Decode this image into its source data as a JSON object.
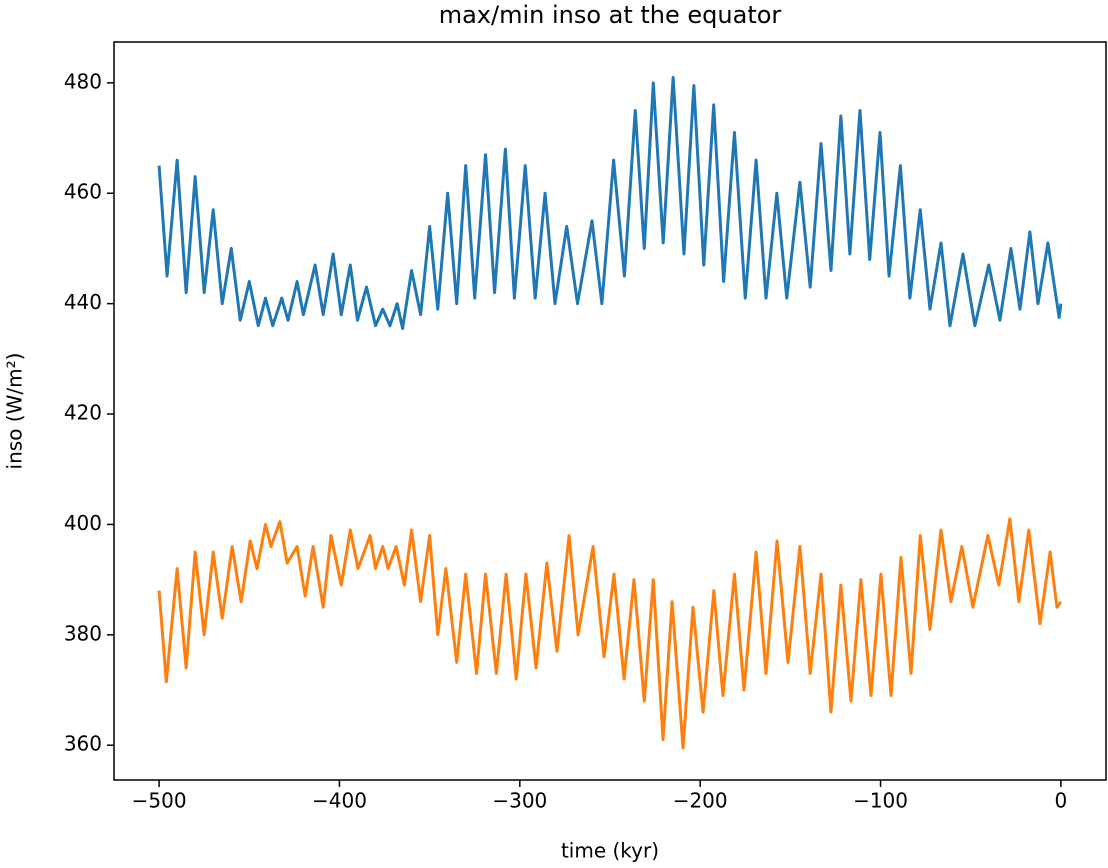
{
  "chart_data": {
    "type": "line",
    "title": "max/min inso at the equator",
    "x_label": "time (kyr)",
    "y_label": "inso (W/m²)",
    "xlim": [
      -525,
      25
    ],
    "ylim": [
      353.7,
      487.4
    ],
    "xticks": [
      {
        "value": -500,
        "label": "−500"
      },
      {
        "value": -400,
        "label": "−400"
      },
      {
        "value": -300,
        "label": "−300"
      },
      {
        "value": -200,
        "label": "−200"
      },
      {
        "value": -100,
        "label": "−100"
      },
      0
    ],
    "yticks": [
      360,
      380,
      400,
      420,
      440,
      460,
      480
    ],
    "series": [
      {
        "color": "#1f77b4",
        "x": [
          -500,
          -495.6,
          -490,
          -485,
          -480,
          -475,
          -470,
          -465,
          -460,
          -455,
          -450,
          -445,
          -441,
          -437,
          -432,
          -428.5,
          -423.5,
          -420,
          -413.5,
          -409,
          -403.5,
          -399,
          -394,
          -390,
          -385,
          -380,
          -376,
          -372,
          -368,
          -365,
          -360,
          -355,
          -350,
          -345.5,
          -340,
          -335,
          -330,
          -325,
          -319,
          -314,
          -308,
          -303,
          -297,
          -291.5,
          -286,
          -280.5,
          -274,
          -268,
          -260,
          -254.5,
          -248,
          -242,
          -236,
          -231,
          -226,
          -220.5,
          -215,
          -209,
          -203.5,
          -198,
          -192.5,
          -187,
          -181,
          -175,
          -169,
          -163.5,
          -157.5,
          -152,
          -144.7,
          -139,
          -133,
          -127.5,
          -122,
          -117,
          -111.4,
          -106,
          -100.3,
          -95.3,
          -89,
          -83.7,
          -78,
          -72.6,
          -66.5,
          -61.5,
          -54.3,
          -47.7,
          -40,
          -33.8,
          -27.7,
          -22.7,
          -17.2,
          -12.7,
          -7.2,
          -1,
          0
        ],
        "values": [
          465,
          445,
          466,
          442,
          463,
          442,
          457,
          440,
          450,
          437,
          444,
          436,
          441,
          436,
          441,
          437,
          444,
          438,
          447,
          438,
          449,
          438,
          447,
          437,
          443,
          436,
          439,
          436,
          440,
          435.5,
          446,
          438,
          454,
          439,
          460,
          440,
          465,
          441,
          467,
          442,
          468,
          441,
          465,
          441,
          460,
          440,
          454,
          440,
          455,
          440,
          466,
          445,
          475,
          450,
          480,
          451,
          481,
          449,
          479.5,
          447,
          476,
          444,
          471,
          441,
          466,
          441,
          460,
          441,
          462,
          443,
          469,
          446,
          474,
          449,
          475,
          448,
          471,
          445,
          465,
          441,
          457,
          439,
          451,
          436,
          449,
          436,
          447,
          437,
          450,
          439,
          453,
          440,
          451,
          437.5,
          440
        ]
      },
      {
        "color": "#ff7f0e",
        "x": [
          -500,
          -496,
          -490,
          -485,
          -480,
          -475,
          -470,
          -465,
          -459.5,
          -454.5,
          -449.5,
          -445.7,
          -441,
          -438,
          -433,
          -429,
          -423.5,
          -419,
          -414.6,
          -409,
          -404.7,
          -399,
          -394,
          -389.7,
          -383,
          -380,
          -376,
          -373,
          -368.6,
          -364,
          -360,
          -355,
          -350,
          -345.5,
          -341,
          -335,
          -330,
          -324,
          -319,
          -313,
          -307.6,
          -302,
          -296.6,
          -291,
          -285,
          -279.4,
          -272.7,
          -267.7,
          -259.4,
          -253.3,
          -247.8,
          -242.2,
          -236.7,
          -231,
          -226,
          -220.6,
          -215.6,
          -209.5,
          -204,
          -198.4,
          -192.4,
          -187.4,
          -181,
          -175.7,
          -169,
          -163.5,
          -157.4,
          -151.3,
          -144.7,
          -139,
          -133,
          -127.5,
          -122,
          -116.4,
          -110.9,
          -105.3,
          -99.8,
          -94.2,
          -88.7,
          -83.1,
          -78,
          -72.6,
          -66.5,
          -61,
          -54.9,
          -48.8,
          -40.5,
          -34.4,
          -28.3,
          -23.3,
          -17.8,
          -11.6,
          -6,
          -2.2,
          0
        ],
        "values": [
          388,
          371.5,
          392,
          374,
          395,
          380,
          395,
          383,
          396,
          386,
          397,
          392,
          400,
          396,
          400.5,
          393,
          396,
          387,
          396,
          385,
          398,
          389,
          399,
          392,
          398,
          392,
          396,
          392,
          396,
          389,
          399,
          386,
          398,
          380,
          392,
          375,
          391,
          373,
          391,
          373,
          391,
          372,
          391,
          374,
          393,
          377,
          398,
          380,
          396,
          376,
          391,
          372,
          390,
          368,
          390,
          361,
          386,
          359.5,
          385,
          366,
          388,
          369,
          391,
          370,
          395,
          373,
          397,
          375,
          396,
          373,
          391,
          366,
          389,
          368,
          390,
          369,
          391,
          369,
          394,
          373,
          398,
          381,
          399,
          386,
          396,
          385,
          398,
          389,
          401,
          386,
          399,
          382,
          395,
          385,
          386
        ]
      }
    ]
  }
}
